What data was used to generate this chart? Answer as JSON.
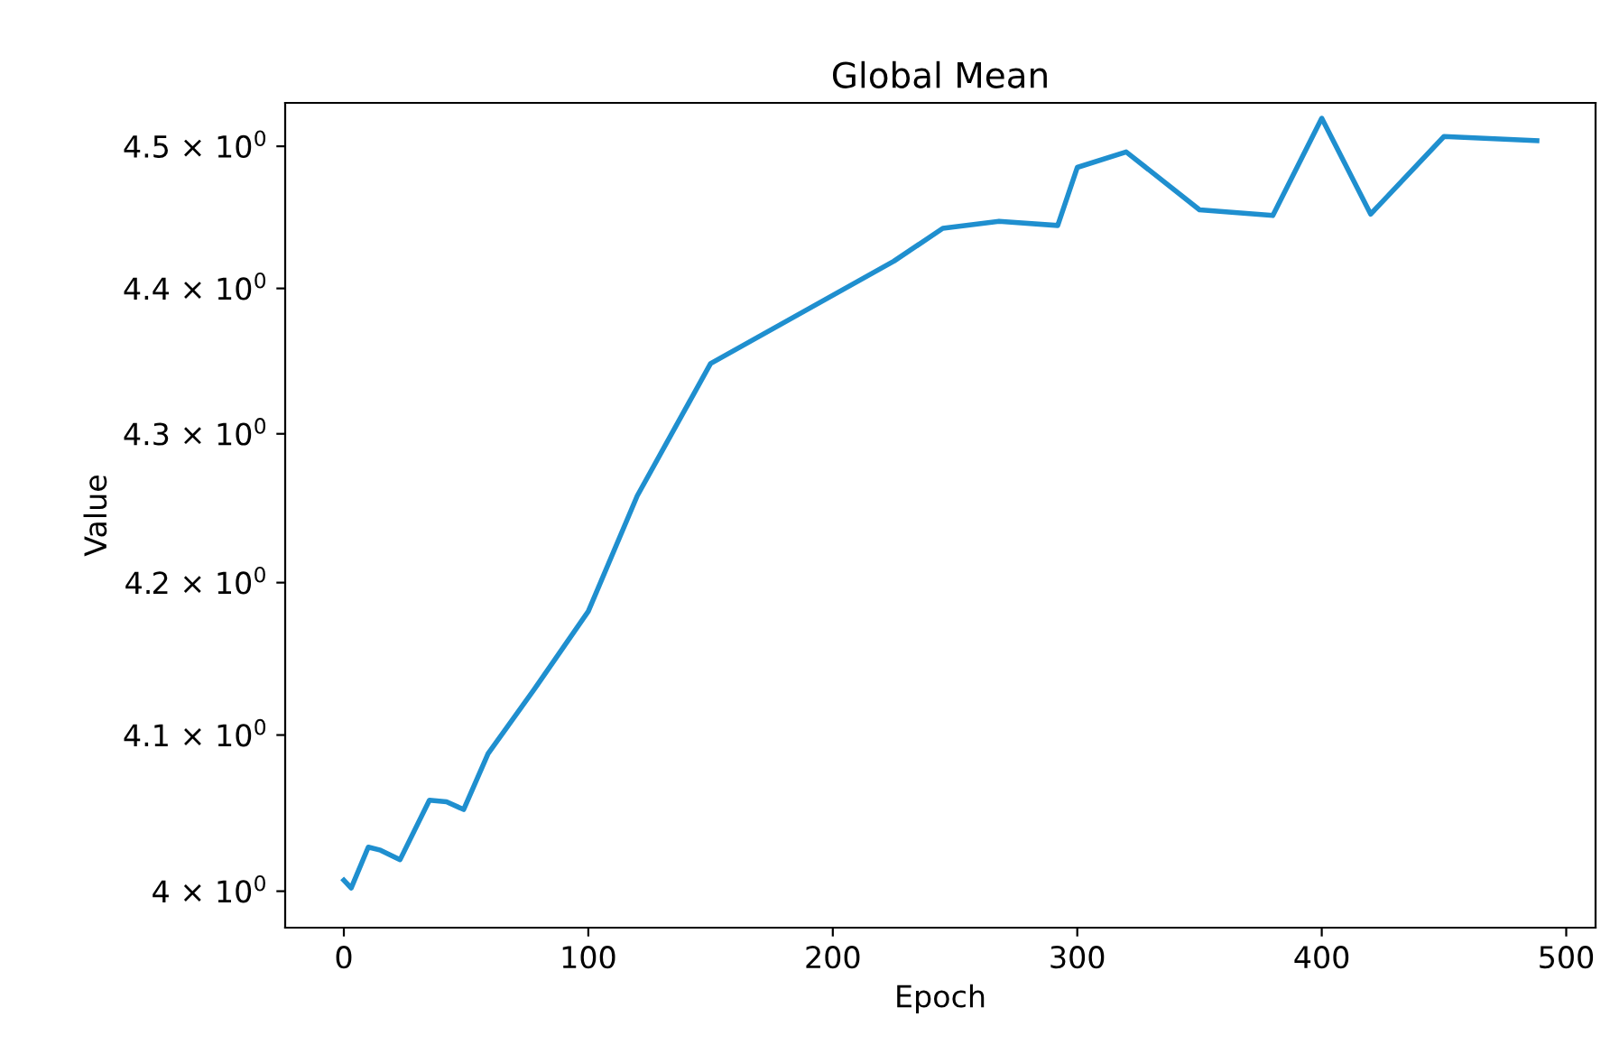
{
  "chart_data": {
    "type": "line",
    "title": "Global Mean",
    "xlabel": "Epoch",
    "ylabel": "Value",
    "log": "y",
    "grid": false,
    "x": [
      0,
      3,
      10,
      15,
      23,
      35,
      42,
      49,
      59,
      78,
      100,
      120,
      150,
      225,
      245,
      268,
      292,
      300,
      320,
      350,
      380,
      400,
      420,
      450,
      488
    ],
    "series": [
      {
        "color": "#1f8fcf",
        "values": [
          4.007,
          4.002,
          4.028,
          4.026,
          4.02,
          4.058,
          4.057,
          4.052,
          4.088,
          4.13,
          4.181,
          4.258,
          4.348,
          4.419,
          4.442,
          4.447,
          4.444,
          4.485,
          4.496,
          4.455,
          4.451,
          4.52,
          4.452,
          4.507,
          4.504
        ]
      }
    ],
    "xlim": [
      -24,
      512
    ],
    "xticks": [
      0,
      100,
      200,
      300,
      400,
      500
    ],
    "ylim": [
      3.977,
      4.531
    ],
    "yticks": [
      {
        "value": 4.0,
        "label": "4 × 10$^{0}$"
      },
      {
        "value": 4.1,
        "label": "4.1 × 10$^{0}$"
      },
      {
        "value": 4.2,
        "label": "4.2 × 10$^{0}$"
      },
      {
        "value": 4.3,
        "label": "4.3 × 10$^{0}$"
      },
      {
        "value": 4.4,
        "label": "4.4 × 10$^{0}$"
      },
      {
        "value": 4.5,
        "label": "4.5 × 10$^{0}$"
      }
    ]
  }
}
